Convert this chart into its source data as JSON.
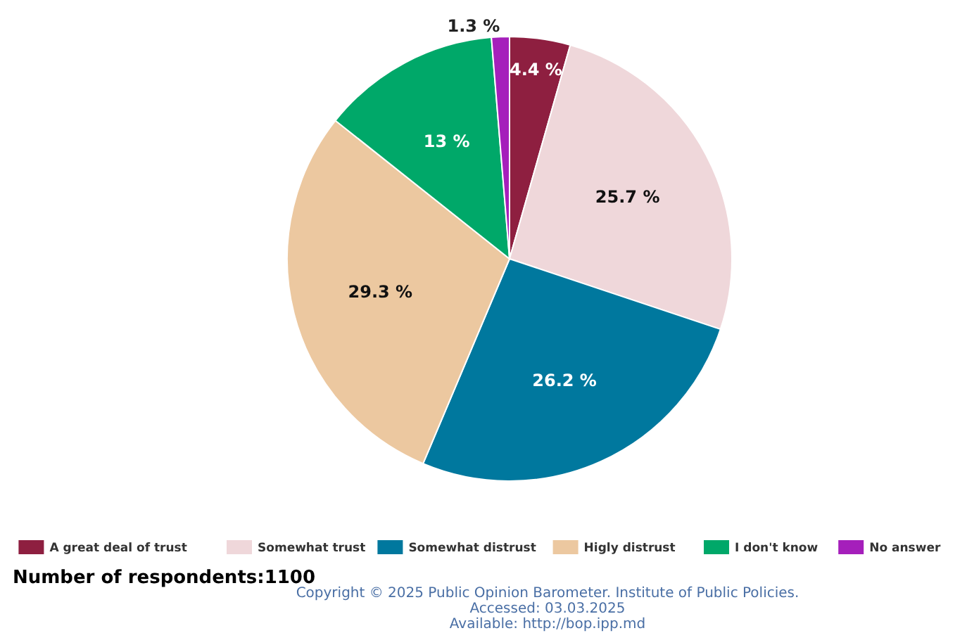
{
  "chart_data": {
    "type": "pie",
    "categories": [
      "A great deal of trust",
      "Somewhat trust",
      "Somewhat distrust",
      "Higly distrust",
      "I don't know",
      "No answer"
    ],
    "values": [
      4.4,
      25.7,
      26.2,
      29.3,
      13,
      1.3
    ],
    "value_labels": [
      "4.4 %",
      "25.7 %",
      "26.2 %",
      "29.3 %",
      "13 %",
      "1.3 %"
    ],
    "colors": [
      "#8e1f40",
      "#efd7da",
      "#00789e",
      "#ecc8a0",
      "#00a869",
      "#a51fbb"
    ],
    "legend": "bottom",
    "annotations": [
      "Number of respondents:1100",
      "Copyright © 2025 Public Opinion Barometer. Institute of Public Policies.",
      "Accessed: 03.03.2025",
      "Available: http://bop.ipp.md"
    ]
  }
}
